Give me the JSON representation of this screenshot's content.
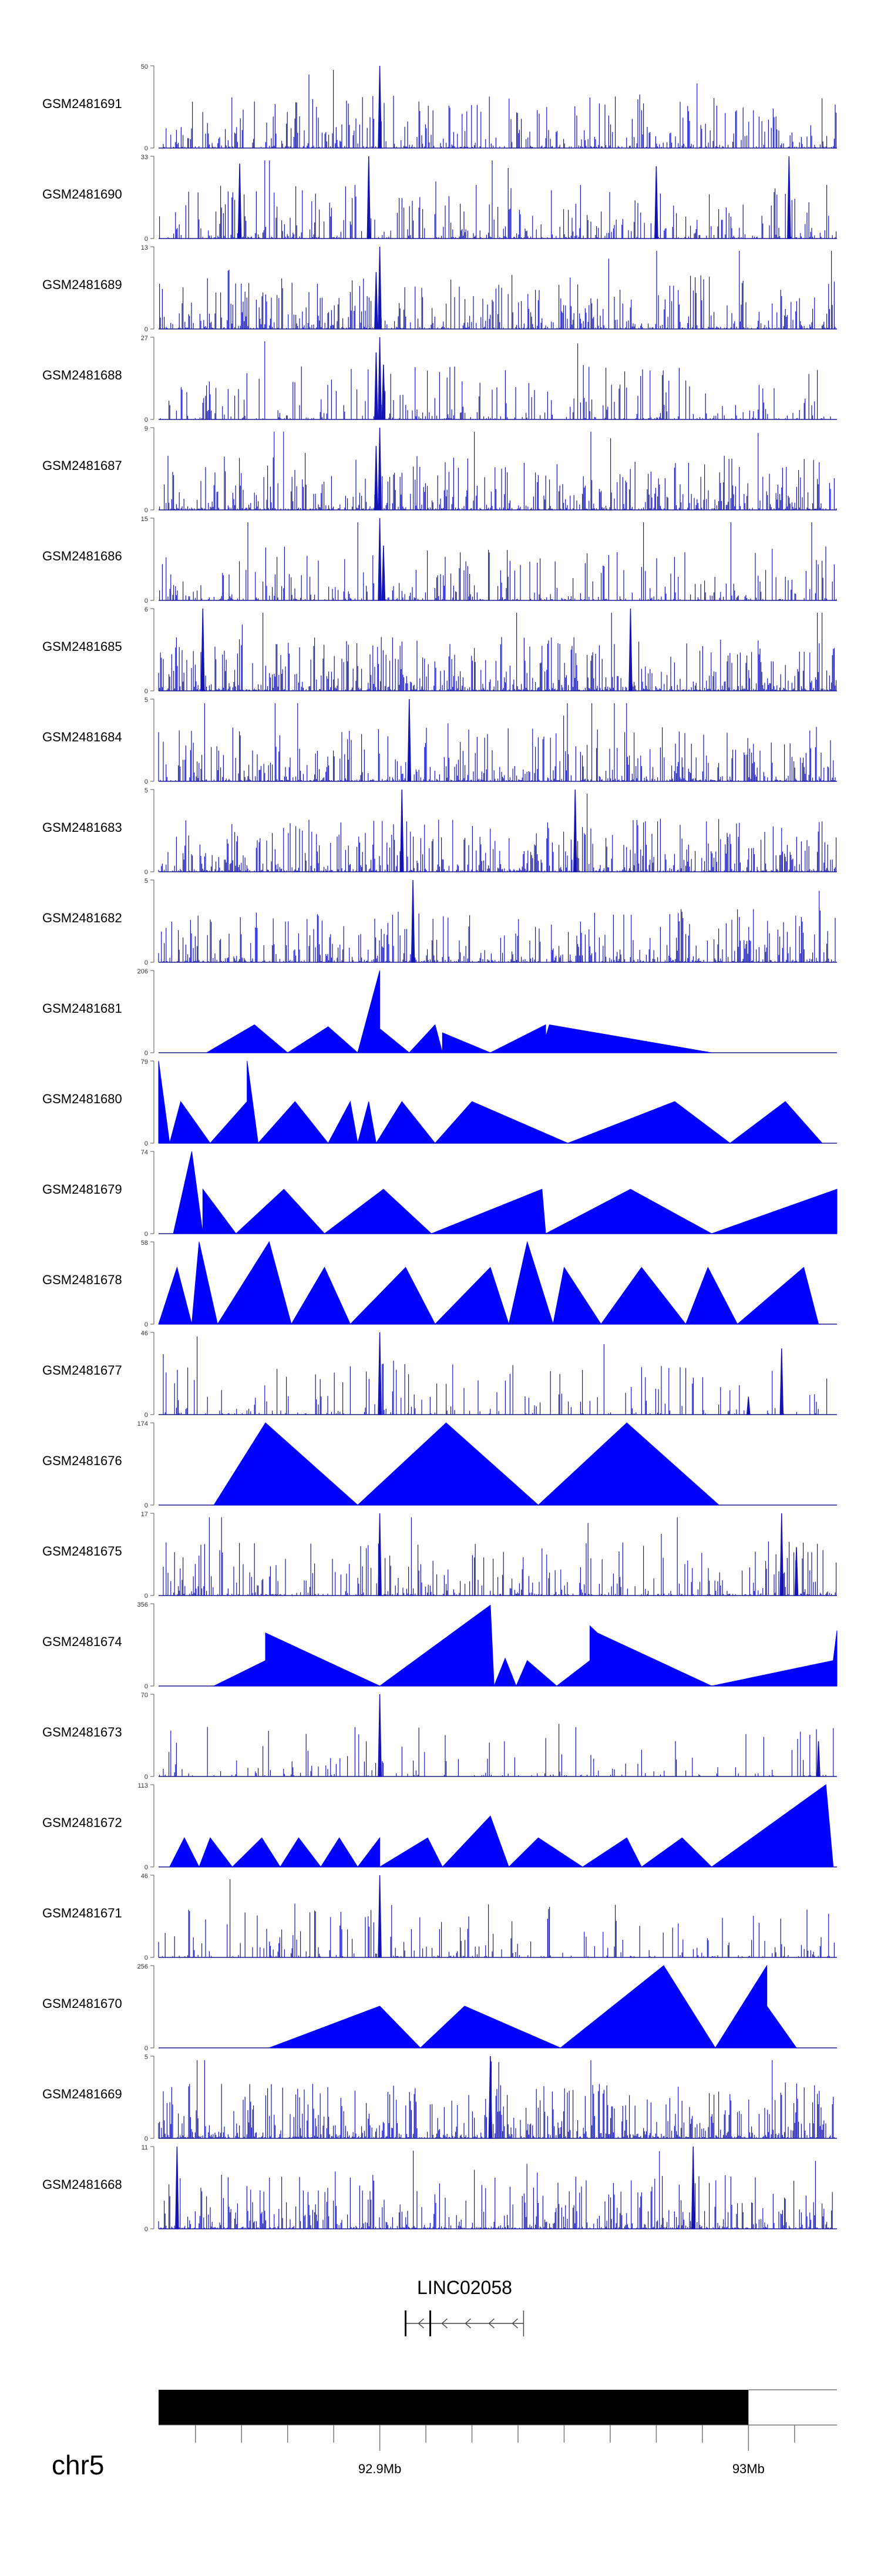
{
  "chart_data": {
    "type": "area",
    "title": "",
    "color": "#0000ff",
    "region": {
      "chromosome": "chr5",
      "ticks": [
        {
          "label": "92.9Mb",
          "value": 92.9,
          "labeled": true
        },
        {
          "label": "93Mb",
          "value": 93.0,
          "labeled": true
        }
      ],
      "x_range_mb": [
        92.84,
        93.024
      ],
      "ideogram_band_end_mb": 93.0
    },
    "gene": {
      "name": "LINC02058",
      "strand": "-",
      "start_mb": 92.907,
      "end_mb": 92.939
    },
    "tracks": [
      {
        "name": "GSM2481691",
        "ymax": 50,
        "ymin": 0,
        "style": "spiky",
        "density": 0.5,
        "peaks": [
          [
            92.9,
            50
          ]
        ]
      },
      {
        "name": "GSM2481690",
        "ymax": 33,
        "ymin": 0,
        "style": "spiky",
        "density": 0.45,
        "peaks": [
          [
            92.897,
            33
          ],
          [
            92.862,
            30
          ],
          [
            92.975,
            29
          ],
          [
            93.011,
            33
          ]
        ]
      },
      {
        "name": "GSM2481689",
        "ymax": 13,
        "ymin": 0,
        "style": "spiky",
        "density": 0.55,
        "peaks": [
          [
            92.9,
            13
          ],
          [
            92.899,
            9
          ]
        ]
      },
      {
        "name": "GSM2481688",
        "ymax": 27,
        "ymin": 0,
        "style": "spiky",
        "density": 0.35,
        "peaks": [
          [
            92.9,
            27
          ],
          [
            92.899,
            22
          ],
          [
            92.901,
            18
          ]
        ]
      },
      {
        "name": "GSM2481687",
        "ymax": 9,
        "ymin": 0,
        "style": "spiky",
        "density": 0.6,
        "peaks": [
          [
            92.9,
            9
          ],
          [
            92.899,
            7
          ]
        ]
      },
      {
        "name": "GSM2481686",
        "ymax": 15,
        "ymin": 0,
        "style": "spiky",
        "density": 0.4,
        "peaks": [
          [
            92.9,
            15
          ],
          [
            92.901,
            10
          ]
        ]
      },
      {
        "name": "GSM2481685",
        "ymax": 6,
        "ymin": 0,
        "style": "spiky",
        "density": 0.7,
        "peaks": [
          [
            92.852,
            6
          ],
          [
            92.968,
            6
          ]
        ]
      },
      {
        "name": "GSM2481684",
        "ymax": 5,
        "ymin": 0,
        "style": "spiky",
        "density": 0.6,
        "peaks": [
          [
            92.908,
            5
          ]
        ]
      },
      {
        "name": "GSM2481683",
        "ymax": 5,
        "ymin": 0,
        "style": "spiky",
        "density": 0.65,
        "peaks": [
          [
            92.906,
            5
          ],
          [
            92.953,
            5
          ]
        ]
      },
      {
        "name": "GSM2481682",
        "ymax": 5,
        "ymin": 0,
        "style": "spiky",
        "density": 0.55,
        "peaks": [
          [
            92.909,
            5
          ]
        ]
      },
      {
        "name": "GSM2481681",
        "ymax": 206,
        "ymin": 0,
        "style": "triangles",
        "points": [
          [
            92.853,
            0
          ],
          [
            92.866,
            70
          ],
          [
            92.875,
            0
          ],
          [
            92.886,
            65
          ],
          [
            92.894,
            0
          ],
          [
            92.9,
            206
          ],
          [
            92.9,
            60
          ],
          [
            92.908,
            0
          ],
          [
            92.915,
            70
          ],
          [
            92.917,
            0
          ],
          [
            92.917,
            50
          ],
          [
            92.93,
            0
          ],
          [
            92.945,
            70
          ],
          [
            92.945,
            40
          ],
          [
            92.946,
            70
          ],
          [
            92.99,
            0
          ]
        ]
      },
      {
        "name": "GSM2481680",
        "ymax": 79,
        "ymin": 0,
        "style": "triangles",
        "points": [
          [
            92.84,
            79
          ],
          [
            92.843,
            0
          ],
          [
            92.846,
            40
          ],
          [
            92.854,
            0
          ],
          [
            92.864,
            40
          ],
          [
            92.864,
            79
          ],
          [
            92.867,
            0
          ],
          [
            92.877,
            40
          ],
          [
            92.886,
            0
          ],
          [
            92.892,
            40
          ],
          [
            92.894,
            0
          ],
          [
            92.897,
            40
          ],
          [
            92.899,
            0
          ],
          [
            92.906,
            40
          ],
          [
            92.915,
            0
          ],
          [
            92.925,
            40
          ],
          [
            92.951,
            0
          ],
          [
            92.98,
            40
          ],
          [
            92.995,
            0
          ],
          [
            93.01,
            40
          ],
          [
            93.02,
            0
          ]
        ]
      },
      {
        "name": "GSM2481679",
        "ymax": 74,
        "ymin": 0,
        "style": "triangles",
        "points": [
          [
            92.844,
            0
          ],
          [
            92.849,
            74
          ],
          [
            92.852,
            0
          ],
          [
            92.852,
            40
          ],
          [
            92.861,
            0
          ],
          [
            92.874,
            40
          ],
          [
            92.885,
            0
          ],
          [
            92.901,
            40
          ],
          [
            92.914,
            0
          ],
          [
            92.944,
            40
          ],
          [
            92.945,
            0
          ],
          [
            92.968,
            40
          ],
          [
            92.99,
            0
          ],
          [
            93.024,
            40
          ]
        ]
      },
      {
        "name": "GSM2481678",
        "ymax": 58,
        "ymin": 0,
        "style": "triangles",
        "points": [
          [
            92.84,
            0
          ],
          [
            92.845,
            40
          ],
          [
            92.849,
            0
          ],
          [
            92.851,
            58
          ],
          [
            92.856,
            0
          ],
          [
            92.87,
            58
          ],
          [
            92.876,
            0
          ],
          [
            92.885,
            40
          ],
          [
            92.892,
            0
          ],
          [
            92.907,
            40
          ],
          [
            92.915,
            0
          ],
          [
            92.93,
            40
          ],
          [
            92.935,
            0
          ],
          [
            92.94,
            58
          ],
          [
            92.947,
            0
          ],
          [
            92.95,
            40
          ],
          [
            92.96,
            0
          ],
          [
            92.971,
            40
          ],
          [
            92.983,
            0
          ],
          [
            92.989,
            40
          ],
          [
            92.997,
            0
          ],
          [
            93.015,
            40
          ],
          [
            93.019,
            0
          ]
        ]
      },
      {
        "name": "GSM2481677",
        "ymax": 46,
        "ymin": 0,
        "style": "spiky",
        "density": 0.25,
        "peaks": [
          [
            92.9,
            46
          ],
          [
            93.009,
            37
          ],
          [
            93.0,
            10
          ]
        ]
      },
      {
        "name": "GSM2481676",
        "ymax": 174,
        "ymin": 0,
        "style": "triangles",
        "points": [
          [
            92.855,
            0
          ],
          [
            92.869,
            174
          ],
          [
            92.894,
            0
          ],
          [
            92.918,
            174
          ],
          [
            92.943,
            0
          ],
          [
            92.967,
            174
          ],
          [
            92.992,
            0
          ]
        ]
      },
      {
        "name": "GSM2481675",
        "ymax": 17,
        "ymin": 0,
        "style": "spiky",
        "density": 0.45,
        "peaks": [
          [
            92.9,
            17
          ],
          [
            93.009,
            17
          ],
          [
            93.013,
            10
          ]
        ]
      },
      {
        "name": "GSM2481674",
        "ymax": 356,
        "ymin": 0,
        "style": "triangles",
        "points": [
          [
            92.855,
            0
          ],
          [
            92.869,
            110
          ],
          [
            92.869,
            230
          ],
          [
            92.9,
            0
          ],
          [
            92.93,
            350
          ],
          [
            92.931,
            0
          ],
          [
            92.934,
            120
          ],
          [
            92.937,
            0
          ],
          [
            92.94,
            110
          ],
          [
            92.948,
            0
          ],
          [
            92.957,
            110
          ],
          [
            92.957,
            260
          ],
          [
            92.959,
            230
          ],
          [
            92.99,
            0
          ],
          [
            93.023,
            110
          ],
          [
            93.024,
            240
          ]
        ]
      },
      {
        "name": "GSM2481673",
        "ymax": 70,
        "ymin": 0,
        "style": "spiky",
        "density": 0.2,
        "peaks": [
          [
            92.9,
            70
          ],
          [
            93.019,
            30
          ]
        ]
      },
      {
        "name": "GSM2481672",
        "ymax": 113,
        "ymin": 0,
        "style": "triangles",
        "points": [
          [
            92.843,
            0
          ],
          [
            92.847,
            40
          ],
          [
            92.851,
            0
          ],
          [
            92.854,
            40
          ],
          [
            92.86,
            0
          ],
          [
            92.868,
            40
          ],
          [
            92.873,
            0
          ],
          [
            92.878,
            40
          ],
          [
            92.884,
            0
          ],
          [
            92.889,
            40
          ],
          [
            92.894,
            0
          ],
          [
            92.9,
            40
          ],
          [
            92.9,
            0
          ],
          [
            92.913,
            40
          ],
          [
            92.917,
            0
          ],
          [
            92.93,
            70
          ],
          [
            92.935,
            0
          ],
          [
            92.943,
            40
          ],
          [
            92.955,
            0
          ],
          [
            92.967,
            40
          ],
          [
            92.971,
            0
          ],
          [
            92.982,
            40
          ],
          [
            92.99,
            0
          ],
          [
            93.021,
            113
          ],
          [
            93.023,
            0
          ]
        ]
      },
      {
        "name": "GSM2481671",
        "ymax": 46,
        "ymin": 0,
        "style": "spiky",
        "density": 0.3,
        "peaks": [
          [
            92.9,
            46
          ]
        ]
      },
      {
        "name": "GSM2481670",
        "ymax": 256,
        "ymin": 0,
        "style": "triangles",
        "points": [
          [
            92.87,
            0
          ],
          [
            92.9,
            130
          ],
          [
            92.911,
            0
          ],
          [
            92.923,
            130
          ],
          [
            92.949,
            0
          ],
          [
            92.977,
            256
          ],
          [
            92.991,
            0
          ],
          [
            93.005,
            256
          ],
          [
            93.005,
            130
          ],
          [
            93.013,
            0
          ]
        ]
      },
      {
        "name": "GSM2481669",
        "ymax": 5,
        "ymin": 0,
        "style": "spiky",
        "density": 0.7,
        "peaks": [
          [
            92.93,
            5
          ]
        ]
      },
      {
        "name": "GSM2481668",
        "ymax": 11,
        "ymin": 0,
        "style": "spiky",
        "density": 0.6,
        "peaks": [
          [
            92.845,
            11
          ],
          [
            92.985,
            11
          ]
        ]
      }
    ]
  }
}
